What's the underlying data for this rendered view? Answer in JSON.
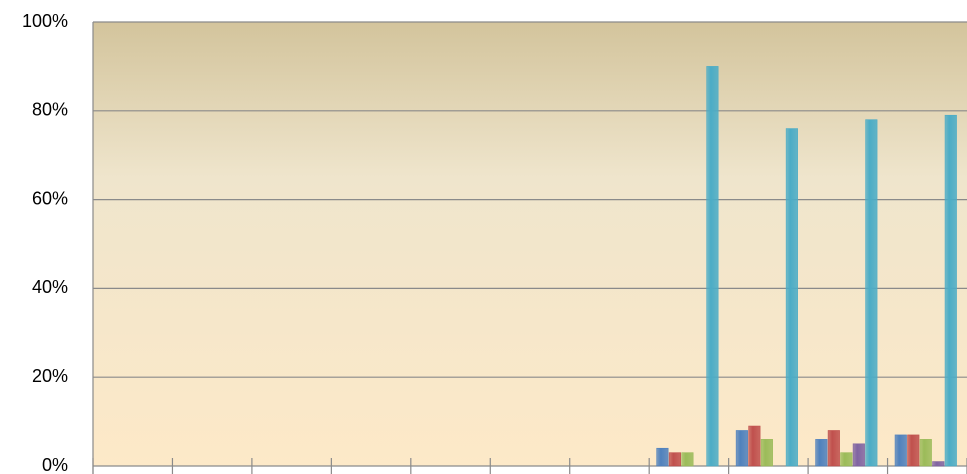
{
  "chart_data": {
    "type": "bar",
    "categories": [
      null,
      null,
      null,
      null,
      null,
      null,
      null,
      null,
      null,
      null,
      null
    ],
    "series": [
      {
        "color": "#4f81bd",
        "values": [
          null,
          null,
          null,
          null,
          null,
          null,
          null,
          4,
          8,
          6,
          7
        ]
      },
      {
        "color": "#c0504d",
        "values": [
          null,
          null,
          null,
          null,
          null,
          null,
          null,
          3,
          9,
          8,
          7
        ]
      },
      {
        "color": "#9bbb59",
        "values": [
          null,
          null,
          null,
          null,
          null,
          null,
          null,
          3,
          6,
          3,
          6
        ]
      },
      {
        "color": "#8064a2",
        "values": [
          null,
          null,
          null,
          null,
          null,
          null,
          null,
          0,
          0,
          5,
          1
        ]
      },
      {
        "color": "#4bacc6",
        "values": [
          null,
          null,
          null,
          null,
          null,
          null,
          null,
          90,
          76,
          78,
          79
        ]
      }
    ],
    "ylim": [
      0,
      100
    ],
    "yticks": [
      {
        "value": 0,
        "label": "0%"
      },
      {
        "value": 20,
        "label": "20%"
      },
      {
        "value": 40,
        "label": "40%"
      },
      {
        "value": 60,
        "label": "60%"
      },
      {
        "value": 80,
        "label": "80%"
      },
      {
        "value": 100,
        "label": "100%"
      }
    ],
    "grid": true
  }
}
